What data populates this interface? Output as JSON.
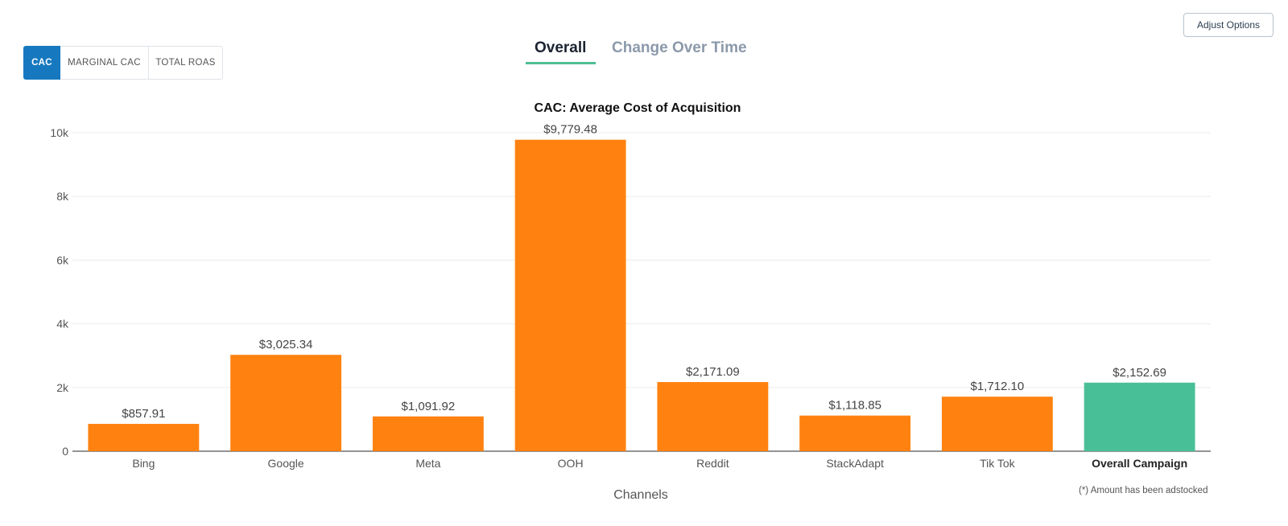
{
  "header": {
    "adjust_options_label": "Adjust Options"
  },
  "metric_tabs": [
    {
      "label": "CAC",
      "active": true
    },
    {
      "label": "MARGINAL CAC",
      "active": false
    },
    {
      "label": "TOTAL ROAS",
      "active": false
    }
  ],
  "view_tabs": [
    {
      "label": "Overall",
      "active": true
    },
    {
      "label": "Change Over Time",
      "active": false
    }
  ],
  "colors": {
    "channel_bar": "#ff8210",
    "overall_bar": "#49bf97",
    "active_tab": "#1679bf",
    "underline": "#4fbf93"
  },
  "chart_data": {
    "type": "bar",
    "title": "CAC: Average Cost of Acquisition",
    "xlabel": "Channels",
    "ylabel": "",
    "ylim": [
      0,
      10000
    ],
    "yticks": [
      0,
      2000,
      4000,
      6000,
      8000,
      10000
    ],
    "ytick_labels": [
      "0",
      "2k",
      "4k",
      "6k",
      "8k",
      "10k"
    ],
    "categories": [
      "Bing",
      "Google",
      "Meta",
      "OOH",
      "Reddit",
      "StackAdapt",
      "Tik Tok",
      "Overall Campaign"
    ],
    "values": [
      857.91,
      3025.34,
      1091.92,
      9779.48,
      2171.09,
      1118.85,
      1712.1,
      2152.69
    ],
    "value_labels": [
      "$857.91",
      "$3,025.34",
      "$1,091.92",
      "$9,779.48",
      "$2,171.09",
      "$1,118.85",
      "$1,712.10",
      "$2,152.69"
    ],
    "highlight_category": "Overall Campaign",
    "grid": true,
    "legend": "none"
  },
  "footnote": "(*) Amount has been adstocked"
}
